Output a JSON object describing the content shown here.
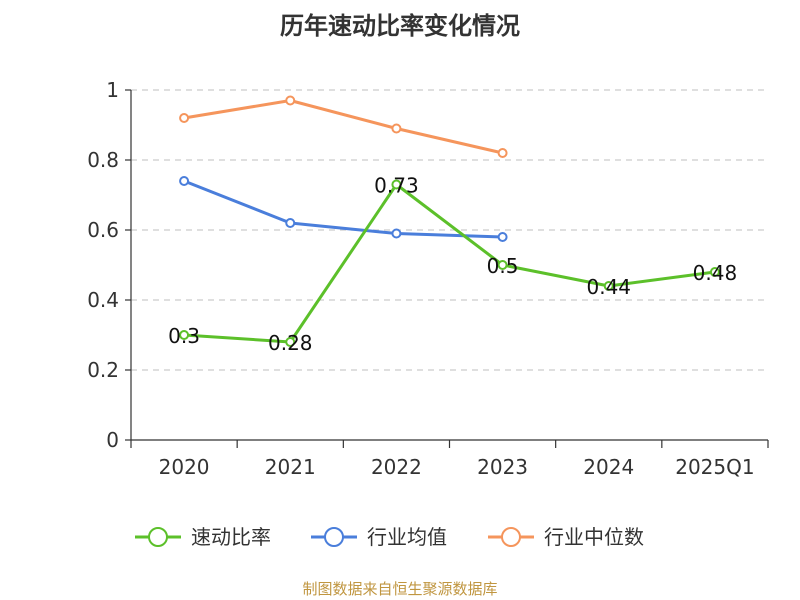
{
  "chart_data": {
    "type": "line",
    "title": "历年速动比率变化情况",
    "categories": [
      "2020",
      "2021",
      "2022",
      "2023",
      "2024",
      "2025Q1"
    ],
    "ylim": [
      0,
      1
    ],
    "yticks": [
      0,
      0.2,
      0.4,
      0.6,
      0.8,
      1
    ],
    "ytick_labels": [
      "0",
      "0.2",
      "0.4",
      "0.6",
      "0.8",
      "1"
    ],
    "grid": true,
    "legend_position": "bottom",
    "series": [
      {
        "name": "速动比率",
        "color": "#5cc02a",
        "values": [
          0.3,
          0.28,
          0.73,
          0.5,
          0.44,
          0.48
        ],
        "labels": [
          "0.3",
          "0.28",
          "0.73",
          "0.5",
          "0.44",
          "0.48"
        ],
        "show_labels": true
      },
      {
        "name": "行业均值",
        "color": "#4a7edb",
        "values": [
          0.74,
          0.62,
          0.59,
          0.58,
          null,
          null
        ],
        "show_labels": false
      },
      {
        "name": "行业中位数",
        "color": "#f5955c",
        "values": [
          0.92,
          0.97,
          0.89,
          0.82,
          null,
          null
        ],
        "show_labels": false
      }
    ]
  },
  "footer": "制图数据来自恒生聚源数据库"
}
